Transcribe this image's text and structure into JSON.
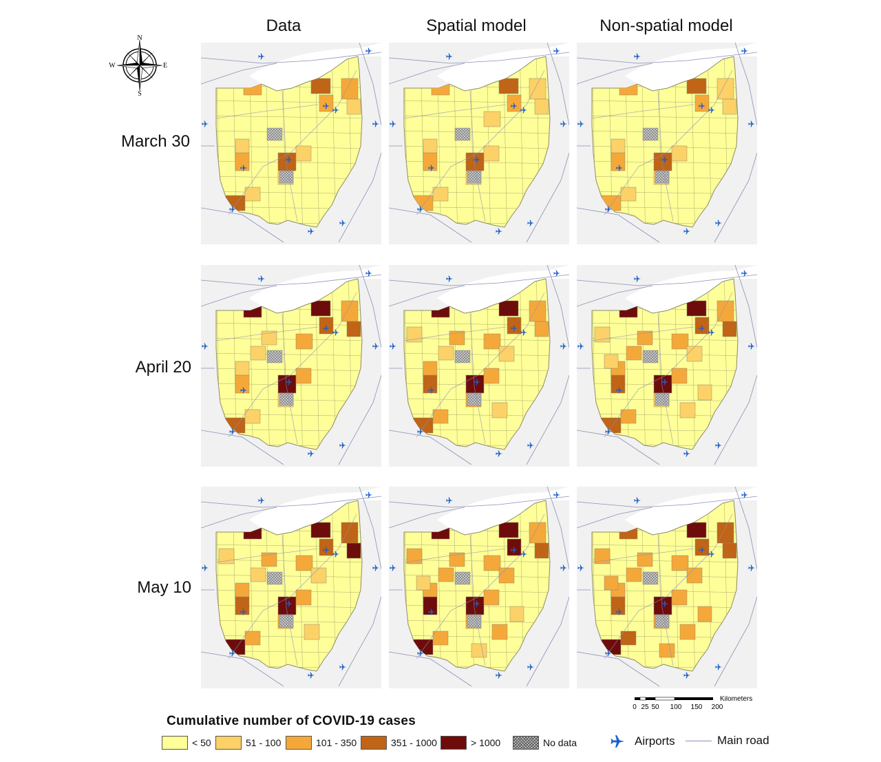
{
  "columns": [
    "Data",
    "Spatial model",
    "Non-spatial model"
  ],
  "rows": [
    "March 30",
    "April 20",
    "May 10"
  ],
  "compass": {
    "n": "N",
    "s": "S",
    "e": "E",
    "w": "W"
  },
  "legend": {
    "title": "Cumulative  number  of COVID-19  cases",
    "classes": [
      {
        "label": "< 50",
        "color": "#ffff99"
      },
      {
        "label": "51 - 100",
        "color": "#fcd167"
      },
      {
        "label": "101 - 350",
        "color": "#f5a83a"
      },
      {
        "label": "351 - 1000",
        "color": "#c06418"
      },
      {
        "label": "> 1000",
        "color": "#6e0c0c"
      },
      {
        "label": "No data",
        "color": "hatched"
      }
    ],
    "airports_label": "Airports",
    "road_label": "Main road"
  },
  "scalebar": {
    "unit": "Kilometers",
    "ticks": [
      "0",
      "25",
      "50",
      "100",
      "150",
      "200"
    ]
  },
  "colors": {
    "map_background": "#f1f1f1",
    "ohio_base": "#ffff99",
    "road": "#8a8fb8",
    "airport": "#1d5fc8",
    "county_border": "#8a8a6a"
  },
  "icon_names": {
    "airport": "airplane-icon",
    "compass": "compass-rose-icon"
  }
}
